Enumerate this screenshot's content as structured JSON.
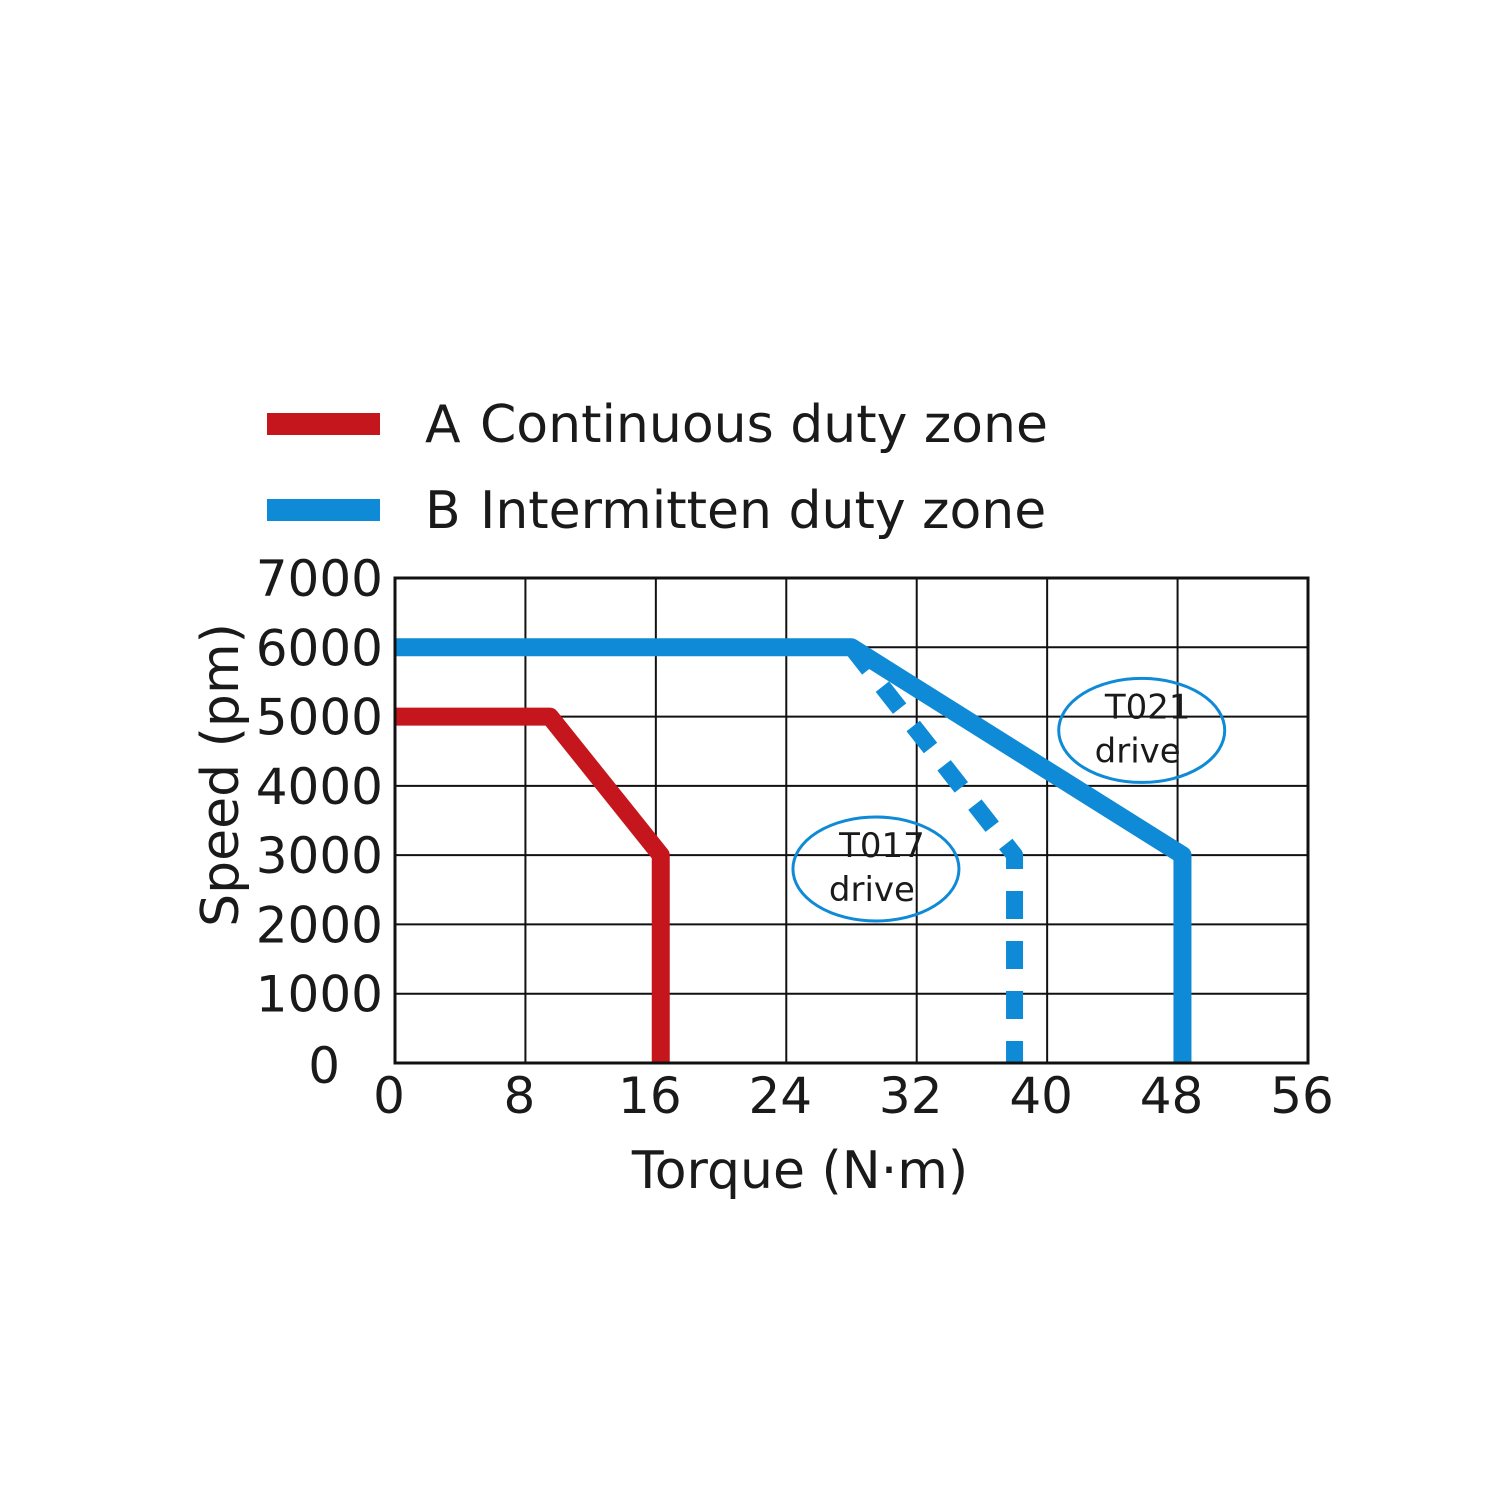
{
  "chart_data": {
    "type": "line",
    "xlabel": "Torque (N·m)",
    "ylabel": "Speed (pm)",
    "xlim": [
      0,
      56
    ],
    "ylim": [
      0,
      7000
    ],
    "x_ticks": [
      "0",
      "8",
      "16",
      "24",
      "32",
      "40",
      "48",
      "56"
    ],
    "y_ticks": [
      "0",
      "1000",
      "2000",
      "3000",
      "4000",
      "5000",
      "6000",
      "7000"
    ],
    "grid": true,
    "legend_position": "top",
    "legend": [
      {
        "marker": "A",
        "label": "Continuous duty zone",
        "color": "#c4161c"
      },
      {
        "marker": "B",
        "label": "Intermitten duty zone",
        "color": "#0f8ad6"
      }
    ],
    "series": [
      {
        "color": "#c4161c",
        "style": "solid",
        "points": [
          [
            0,
            5000
          ],
          [
            9.5,
            5000
          ],
          [
            16.3,
            3000
          ],
          [
            16.3,
            0
          ]
        ]
      },
      {
        "color": "#0f8ad6",
        "style": "solid",
        "points": [
          [
            0,
            6000
          ],
          [
            28,
            6000
          ],
          [
            48.3,
            3000
          ],
          [
            48.3,
            0
          ]
        ]
      },
      {
        "color": "#0f8ad6",
        "style": "dashed",
        "points": [
          [
            28,
            6000
          ],
          [
            38,
            3000
          ],
          [
            38,
            0
          ]
        ]
      }
    ],
    "annotations": [
      {
        "line1": "T021",
        "line2": "drive",
        "x": 45.8,
        "y": 4800,
        "color": "#0f8ad6"
      },
      {
        "line1": "T017",
        "line2": "drive",
        "x": 29.5,
        "y": 2800,
        "color": "#0f8ad6"
      }
    ]
  }
}
